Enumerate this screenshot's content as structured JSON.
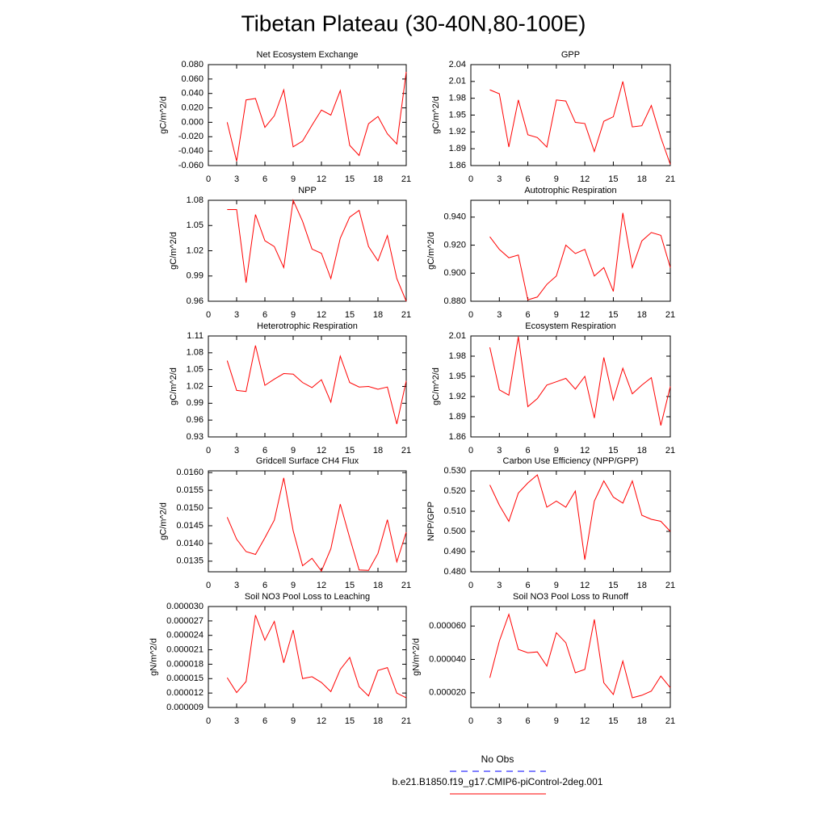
{
  "title": "Tibetan Plateau (30-40N,80-100E)",
  "legend": [
    {
      "name": "No Obs",
      "color": "#0000ff",
      "dash": true
    },
    {
      "name": "b.e21.B1850.f19_g17.CMIP6-piControl-2deg.001",
      "color": "#ff0000",
      "dash": false
    }
  ],
  "chart_data": [
    {
      "type": "line",
      "title": "Net Ecosystem Exchange",
      "ylabel": "gC/m^2/d",
      "color": "#ff0000",
      "x": [
        2,
        3,
        4,
        5,
        6,
        7,
        8,
        9,
        10,
        11,
        12,
        13,
        14,
        15,
        16,
        17,
        18,
        19,
        20,
        21
      ],
      "values": [
        0.0,
        -0.054,
        0.031,
        0.033,
        -0.007,
        0.009,
        0.045,
        -0.034,
        -0.026,
        -0.004,
        0.017,
        0.01,
        0.044,
        -0.032,
        -0.046,
        -0.002,
        0.008,
        -0.016,
        -0.03,
        0.07
      ],
      "xlim": [
        0,
        21
      ],
      "xticks": [
        0,
        3,
        6,
        9,
        12,
        15,
        18,
        21
      ],
      "ylim": [
        -0.06,
        0.08
      ],
      "yticks": [
        {
          "value": -0.06,
          "label": "-0.060"
        },
        {
          "value": -0.04,
          "label": "-0.040"
        },
        {
          "value": -0.02,
          "label": "-0.020"
        },
        {
          "value": 0,
          "label": "0.000"
        },
        {
          "value": 0.02,
          "label": "0.020"
        },
        {
          "value": 0.04,
          "label": "0.040"
        },
        {
          "value": 0.06,
          "label": "0.060"
        },
        {
          "value": 0.08,
          "label": "0.080"
        }
      ]
    },
    {
      "type": "line",
      "title": "GPP",
      "ylabel": "gC/m^2/d",
      "color": "#ff0000",
      "x": [
        2,
        3,
        4,
        5,
        6,
        7,
        8,
        9,
        10,
        11,
        12,
        13,
        14,
        15,
        16,
        17,
        18,
        19,
        20,
        21
      ],
      "values": [
        1.995,
        1.988,
        1.893,
        1.977,
        1.915,
        1.91,
        1.893,
        1.977,
        1.975,
        1.937,
        1.935,
        1.885,
        1.939,
        1.947,
        2.01,
        1.929,
        1.931,
        1.967,
        1.91,
        1.862
      ],
      "xlim": [
        0,
        21
      ],
      "xticks": [
        0,
        3,
        6,
        9,
        12,
        15,
        18,
        21
      ],
      "ylim": [
        1.86,
        2.04
      ],
      "yticks": [
        1.86,
        1.89,
        1.92,
        1.95,
        1.98,
        2.01,
        2.04
      ]
    },
    {
      "type": "line",
      "title": "NPP",
      "ylabel": "gC/m^2/d",
      "color": "#ff0000",
      "x": [
        2,
        3,
        4,
        5,
        6,
        7,
        8,
        9,
        10,
        11,
        12,
        13,
        14,
        15,
        16,
        17,
        18,
        19,
        20,
        21
      ],
      "values": [
        1.069,
        1.069,
        0.982,
        1.063,
        1.032,
        1.025,
        1.0,
        1.08,
        1.055,
        1.022,
        1.017,
        0.987,
        1.035,
        1.06,
        1.068,
        1.025,
        1.008,
        1.038,
        0.987,
        0.96
      ],
      "xlim": [
        0,
        21
      ],
      "xticks": [
        0,
        3,
        6,
        9,
        12,
        15,
        18,
        21
      ],
      "ylim": [
        0.96,
        1.08
      ],
      "yticks": [
        0.96,
        0.99,
        1.02,
        1.05,
        1.08
      ]
    },
    {
      "type": "line",
      "title": "Autotrophic Respiration",
      "ylabel": "gC/m^2/d",
      "color": "#ff0000",
      "x": [
        2,
        3,
        4,
        5,
        6,
        7,
        8,
        9,
        10,
        11,
        12,
        13,
        14,
        15,
        16,
        17,
        18,
        19,
        20,
        21
      ],
      "values": [
        0.926,
        0.917,
        0.911,
        0.913,
        0.881,
        0.883,
        0.892,
        0.898,
        0.92,
        0.914,
        0.917,
        0.898,
        0.904,
        0.887,
        0.943,
        0.904,
        0.923,
        0.929,
        0.927,
        0.904
      ],
      "xlim": [
        0,
        21
      ],
      "xticks": [
        0,
        3,
        6,
        9,
        12,
        15,
        18,
        21
      ],
      "ylim": [
        0.88,
        0.952
      ],
      "yticks": [
        {
          "value": 0.88,
          "label": "0.880"
        },
        {
          "value": 0.9,
          "label": "0.900"
        },
        {
          "value": 0.92,
          "label": "0.920"
        },
        {
          "value": 0.94,
          "label": "0.940"
        }
      ]
    },
    {
      "type": "line",
      "title": "Heterotrophic Respiration",
      "ylabel": "gC/m^2/d",
      "color": "#ff0000",
      "x": [
        2,
        3,
        4,
        5,
        6,
        7,
        8,
        9,
        10,
        11,
        12,
        13,
        14,
        15,
        16,
        17,
        18,
        19,
        20,
        21
      ],
      "values": [
        1.066,
        1.013,
        1.011,
        1.093,
        1.022,
        1.033,
        1.043,
        1.042,
        1.027,
        1.018,
        1.032,
        0.992,
        1.074,
        1.027,
        1.019,
        1.02,
        1.015,
        1.019,
        0.953,
        1.03
      ],
      "xlim": [
        0,
        21
      ],
      "xticks": [
        0,
        3,
        6,
        9,
        12,
        15,
        18,
        21
      ],
      "ylim": [
        0.93,
        1.11
      ],
      "yticks": [
        0.93,
        0.96,
        0.99,
        1.02,
        1.05,
        1.08,
        1.11
      ]
    },
    {
      "type": "line",
      "title": "Ecosystem Respiration",
      "ylabel": "gC/m^2/d",
      "color": "#ff0000",
      "x": [
        2,
        3,
        4,
        5,
        6,
        7,
        8,
        9,
        10,
        11,
        12,
        13,
        14,
        15,
        16,
        17,
        18,
        19,
        20,
        21
      ],
      "values": [
        1.993,
        1.93,
        1.922,
        2.009,
        1.905,
        1.917,
        1.937,
        1.942,
        1.947,
        1.931,
        1.95,
        1.888,
        1.978,
        1.915,
        1.962,
        1.924,
        1.937,
        1.948,
        1.877,
        1.935
      ],
      "xlim": [
        0,
        21
      ],
      "xticks": [
        0,
        3,
        6,
        9,
        12,
        15,
        18,
        21
      ],
      "ylim": [
        1.86,
        2.01
      ],
      "yticks": [
        1.86,
        1.89,
        1.92,
        1.95,
        1.98,
        2.01
      ]
    },
    {
      "type": "line",
      "title": "Gridcell Surface CH4 Flux",
      "ylabel": "gC/m^2/d",
      "color": "#ff0000",
      "x": [
        2,
        3,
        4,
        5,
        6,
        7,
        8,
        9,
        10,
        11,
        12,
        13,
        14,
        15,
        16,
        17,
        18,
        19,
        20,
        21
      ],
      "values": [
        0.01474,
        0.01412,
        0.01377,
        0.01369,
        0.01416,
        0.01466,
        0.01585,
        0.01436,
        0.01337,
        0.01358,
        0.01322,
        0.01385,
        0.01511,
        0.01416,
        0.01325,
        0.01324,
        0.01372,
        0.01467,
        0.01348,
        0.01432
      ],
      "xlim": [
        0,
        21
      ],
      "xticks": [
        0,
        3,
        6,
        9,
        12,
        15,
        18,
        21
      ],
      "ylim": [
        0.0132,
        0.01605
      ],
      "yticks": [
        {
          "value": 0.0135,
          "label": "0.0135"
        },
        {
          "value": 0.014,
          "label": "0.0140"
        },
        {
          "value": 0.0145,
          "label": "0.0145"
        },
        {
          "value": 0.015,
          "label": "0.0150"
        },
        {
          "value": 0.0155,
          "label": "0.0155"
        },
        {
          "value": 0.016,
          "label": "0.0160"
        }
      ]
    },
    {
      "type": "line",
      "title": "Carbon Use Efficiency (NPP/GPP)",
      "ylabel": "NPP/GPP",
      "color": "#ff0000",
      "x": [
        2,
        3,
        4,
        5,
        6,
        7,
        8,
        9,
        10,
        11,
        12,
        13,
        14,
        15,
        16,
        17,
        18,
        19,
        20,
        21
      ],
      "values": [
        0.523,
        0.513,
        0.505,
        0.519,
        0.524,
        0.528,
        0.512,
        0.515,
        0.512,
        0.52,
        0.486,
        0.515,
        0.525,
        0.517,
        0.514,
        0.525,
        0.508,
        0.506,
        0.505,
        0.5
      ],
      "xlim": [
        0,
        21
      ],
      "xticks": [
        0,
        3,
        6,
        9,
        12,
        15,
        18,
        21
      ],
      "ylim": [
        0.48,
        0.53
      ],
      "yticks": [
        {
          "value": 0.48,
          "label": "0.480"
        },
        {
          "value": 0.49,
          "label": "0.490"
        },
        {
          "value": 0.5,
          "label": "0.500"
        },
        {
          "value": 0.51,
          "label": "0.510"
        },
        {
          "value": 0.52,
          "label": "0.520"
        },
        {
          "value": 0.53,
          "label": "0.530"
        }
      ]
    },
    {
      "type": "line",
      "title": "Soil NO3 Pool Loss to Leaching",
      "ylabel": "gN/m^2/d",
      "color": "#ff0000",
      "x": [
        2,
        3,
        4,
        5,
        6,
        7,
        8,
        9,
        10,
        11,
        12,
        13,
        14,
        15,
        16,
        17,
        18,
        19,
        20,
        21
      ],
      "values": [
        1.52e-05,
        1.21e-05,
        1.44e-05,
        2.82e-05,
        2.3e-05,
        2.69e-05,
        1.83e-05,
        2.51e-05,
        1.5e-05,
        1.54e-05,
        1.42e-05,
        1.23e-05,
        1.69e-05,
        1.94e-05,
        1.33e-05,
        1.14e-05,
        1.67e-05,
        1.73e-05,
        1.2e-05,
        1.1e-05
      ],
      "xlim": [
        0,
        21
      ],
      "xticks": [
        0,
        3,
        6,
        9,
        12,
        15,
        18,
        21
      ],
      "ylim": [
        9e-06,
        3e-05
      ],
      "yticks": [
        {
          "value": 9e-06,
          "label": "0.000009"
        },
        {
          "value": 1.2e-05,
          "label": "0.000012"
        },
        {
          "value": 1.5e-05,
          "label": "0.000015"
        },
        {
          "value": 1.8e-05,
          "label": "0.000018"
        },
        {
          "value": 2.1e-05,
          "label": "0.000021"
        },
        {
          "value": 2.4e-05,
          "label": "0.000024"
        },
        {
          "value": 2.7e-05,
          "label": "0.000027"
        },
        {
          "value": 3e-05,
          "label": "0.000030"
        }
      ]
    },
    {
      "type": "line",
      "title": "Soil NO3 Pool Loss to Runoff",
      "ylabel": "gN/m^2/d",
      "color": "#ff0000",
      "x": [
        2,
        3,
        4,
        5,
        6,
        7,
        8,
        9,
        10,
        11,
        12,
        13,
        14,
        15,
        16,
        17,
        18,
        19,
        20,
        21
      ],
      "values": [
        2.9e-05,
        5.1e-05,
        6.7e-05,
        4.6e-05,
        4.4e-05,
        4.45e-05,
        3.6e-05,
        5.6e-05,
        5e-05,
        3.2e-05,
        3.4e-05,
        6.4e-05,
        2.6e-05,
        1.9e-05,
        3.9e-05,
        1.7e-05,
        1.85e-05,
        2.1e-05,
        3e-05,
        2.3e-05
      ],
      "xlim": [
        0,
        21
      ],
      "xticks": [
        0,
        3,
        6,
        9,
        12,
        15,
        18,
        21
      ],
      "ylim": [
        1.12e-05,
        7.17e-05
      ],
      "yticks": [
        {
          "value": 2e-05,
          "label": "0.000020"
        },
        {
          "value": 4e-05,
          "label": "0.000040"
        },
        {
          "value": 6e-05,
          "label": "0.000060"
        }
      ]
    }
  ]
}
